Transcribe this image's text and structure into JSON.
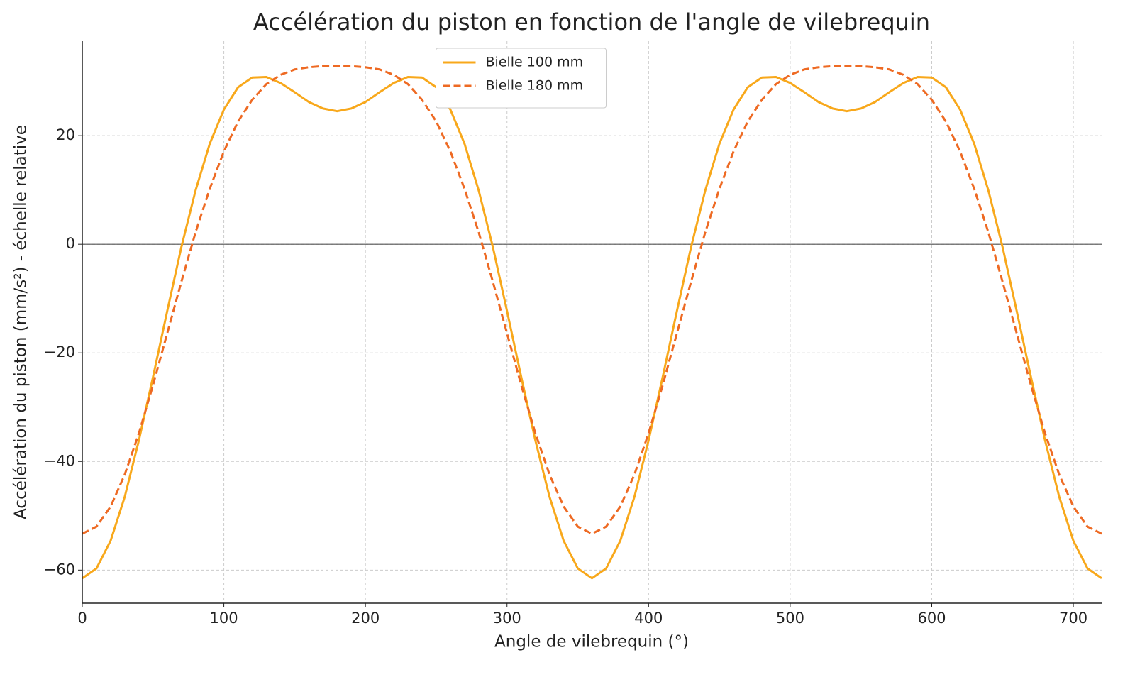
{
  "chart_data": {
    "type": "line",
    "title": "Accélération du piston en fonction de l'angle de vilebrequin",
    "xlabel": "Angle de vilebrequin (°)",
    "ylabel": "Accélération du piston (mm/s²) - échelle relative",
    "x": [
      0,
      10,
      20,
      30,
      40,
      50,
      60,
      70,
      80,
      90,
      100,
      110,
      120,
      130,
      140,
      150,
      160,
      170,
      180,
      190,
      200,
      210,
      220,
      230,
      240,
      250,
      260,
      270,
      280,
      290,
      300,
      310,
      320,
      330,
      340,
      350,
      360,
      370,
      380,
      390,
      400,
      410,
      420,
      430,
      440,
      450,
      460,
      470,
      480,
      490,
      500,
      510,
      520,
      530,
      540,
      550,
      560,
      570,
      580,
      590,
      600,
      610,
      620,
      630,
      640,
      650,
      660,
      670,
      680,
      690,
      700,
      710,
      720
    ],
    "series": [
      {
        "name": "Bielle 100 mm",
        "color": "#f8a81b",
        "dash": false,
        "values": [
          -61.5,
          -59.7,
          -54.6,
          -46.5,
          -36.1,
          -24.4,
          -12.3,
          -0.5,
          9.9,
          18.5,
          24.8,
          28.9,
          30.7,
          30.8,
          29.7,
          28.0,
          26.2,
          25.0,
          24.5,
          25.0,
          26.2,
          28.0,
          29.7,
          30.8,
          30.7,
          28.9,
          24.8,
          18.5,
          9.9,
          -0.5,
          -12.3,
          -24.4,
          -36.1,
          -46.5,
          -54.6,
          -59.7,
          -61.5,
          -59.7,
          -54.6,
          -46.5,
          -36.1,
          -24.4,
          -12.3,
          -0.5,
          9.9,
          18.5,
          24.8,
          28.9,
          30.7,
          30.8,
          29.7,
          28.0,
          26.2,
          25.0,
          24.5,
          25.0,
          26.2,
          28.0,
          29.7,
          30.8,
          30.7,
          28.9,
          24.8,
          18.5,
          9.9,
          -0.5,
          -12.3,
          -24.4,
          -36.1,
          -46.5,
          -54.6,
          -59.7,
          -61.5
        ]
      },
      {
        "name": "Bielle 180 mm",
        "color": "#ee6a23",
        "dash": true,
        "values": [
          -53.3,
          -52.0,
          -48.3,
          -42.4,
          -34.8,
          -25.9,
          -16.4,
          -6.9,
          2.2,
          10.2,
          17.1,
          22.6,
          26.6,
          29.5,
          31.2,
          32.2,
          32.6,
          32.8,
          32.8,
          32.8,
          32.6,
          32.2,
          31.2,
          29.5,
          26.6,
          22.6,
          17.1,
          10.2,
          2.2,
          -6.9,
          -16.4,
          -25.9,
          -34.8,
          -42.4,
          -48.3,
          -52.0,
          -53.3,
          -52.0,
          -48.3,
          -42.4,
          -34.8,
          -25.9,
          -16.4,
          -6.9,
          2.2,
          10.2,
          17.1,
          22.6,
          26.6,
          29.5,
          31.2,
          32.2,
          32.6,
          32.8,
          32.8,
          32.8,
          32.6,
          32.2,
          31.2,
          29.5,
          26.6,
          22.6,
          17.1,
          10.2,
          2.2,
          -6.9,
          -16.4,
          -25.9,
          -34.8,
          -42.4,
          -48.3,
          -52.0,
          -53.3
        ]
      }
    ],
    "xlim": [
      0,
      720
    ],
    "ylim": [
      -66.1,
      37.4
    ],
    "xticks": [
      0,
      100,
      200,
      300,
      400,
      500,
      600,
      700
    ],
    "yticks": [
      {
        "value": -60,
        "label": "−60"
      },
      {
        "value": -40,
        "label": "−40"
      },
      {
        "value": -20,
        "label": "−20"
      },
      0,
      20
    ],
    "hline": 0,
    "grid": true,
    "legend": "upper center"
  }
}
